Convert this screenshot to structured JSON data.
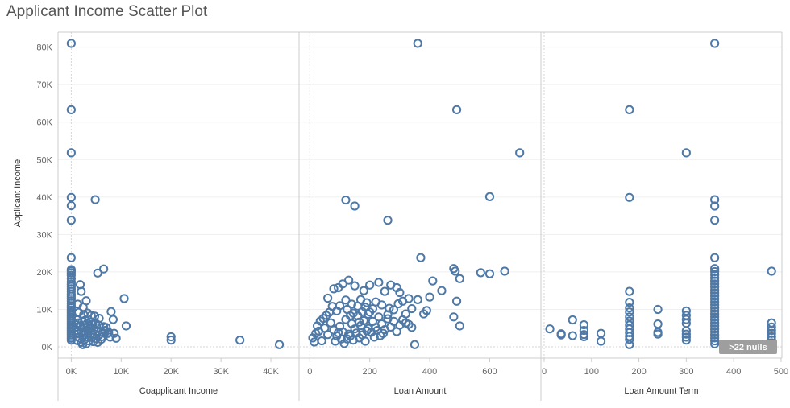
{
  "chart_data": {
    "type": "scatter",
    "title": "Applicant Income Scatter Plot",
    "ylabel": "Applicant Income",
    "ylim": [
      -3000,
      84000
    ],
    "yticks": [
      0,
      10000,
      20000,
      30000,
      40000,
      50000,
      60000,
      70000,
      80000
    ],
    "ytick_labels": [
      "0K",
      "10K",
      "20K",
      "30K",
      "40K",
      "50K",
      "60K",
      "70K",
      "80K"
    ],
    "marker_color": "#4e79a7",
    "grid": true,
    "nulls_badge": ">22 nulls",
    "panels": [
      {
        "xlabel": "Coapplicant Income",
        "xlim": [
          -2000,
          45000
        ],
        "xticks": [
          0,
          10000,
          20000,
          30000,
          40000
        ],
        "xtick_labels": [
          "0K",
          "10K",
          "20K",
          "30K",
          "40K"
        ],
        "points": [
          [
            0,
            81000
          ],
          [
            0,
            63300
          ],
          [
            0,
            51800
          ],
          [
            0,
            39900
          ],
          [
            0,
            37700
          ],
          [
            0,
            33800
          ],
          [
            0,
            23800
          ],
          [
            0,
            20600
          ],
          [
            0,
            20200
          ],
          [
            0,
            19700
          ],
          [
            0,
            19100
          ],
          [
            0,
            18200
          ],
          [
            0,
            17300
          ],
          [
            0,
            16700
          ],
          [
            0,
            16100
          ],
          [
            0,
            15500
          ],
          [
            0,
            14800
          ],
          [
            0,
            14100
          ],
          [
            0,
            13500
          ],
          [
            0,
            12900
          ],
          [
            0,
            12300
          ],
          [
            0,
            11600
          ],
          [
            0,
            11000
          ],
          [
            0,
            10400
          ],
          [
            0,
            9800
          ],
          [
            0,
            9300
          ],
          [
            0,
            8800
          ],
          [
            0,
            8300
          ],
          [
            0,
            7800
          ],
          [
            0,
            7300
          ],
          [
            0,
            6800
          ],
          [
            0,
            6300
          ],
          [
            0,
            5800
          ],
          [
            0,
            5300
          ],
          [
            0,
            4800
          ],
          [
            0,
            4300
          ],
          [
            0,
            3800
          ],
          [
            0,
            3300
          ],
          [
            0,
            2800
          ],
          [
            0,
            2300
          ],
          [
            0,
            1800
          ],
          [
            4800,
            39300
          ],
          [
            5300,
            19700
          ],
          [
            6500,
            20800
          ],
          [
            10600,
            12900
          ],
          [
            11000,
            5600
          ],
          [
            8000,
            9400
          ],
          [
            9000,
            2300
          ],
          [
            8400,
            7300
          ],
          [
            7500,
            3900
          ],
          [
            7000,
            5200
          ],
          [
            20000,
            2700
          ],
          [
            20000,
            1800
          ],
          [
            33800,
            1800
          ],
          [
            41700,
            600
          ],
          [
            1800,
            16600
          ],
          [
            2000,
            14800
          ],
          [
            3000,
            12300
          ],
          [
            2400,
            10600
          ],
          [
            1300,
            11400
          ],
          [
            1500,
            9200
          ],
          [
            2500,
            8600
          ],
          [
            3300,
            9000
          ],
          [
            4000,
            8400
          ],
          [
            4700,
            8200
          ],
          [
            5600,
            7600
          ],
          [
            1200,
            7200
          ],
          [
            2200,
            6700
          ],
          [
            3200,
            6300
          ],
          [
            4300,
            6000
          ],
          [
            5500,
            5800
          ],
          [
            6500,
            5400
          ],
          [
            1000,
            5900
          ],
          [
            1800,
            5300
          ],
          [
            2700,
            5100
          ],
          [
            3600,
            4900
          ],
          [
            4500,
            4500
          ],
          [
            5400,
            4200
          ],
          [
            6300,
            3800
          ],
          [
            7300,
            3600
          ],
          [
            1100,
            4400
          ],
          [
            2000,
            4100
          ],
          [
            2900,
            3800
          ],
          [
            3800,
            3600
          ],
          [
            4700,
            3400
          ],
          [
            5600,
            3200
          ],
          [
            1400,
            3500
          ],
          [
            2300,
            3000
          ],
          [
            3200,
            2700
          ],
          [
            4100,
            2500
          ],
          [
            5000,
            2200
          ],
          [
            6000,
            2000
          ],
          [
            1600,
            2400
          ],
          [
            2600,
            1900
          ],
          [
            3500,
            1600
          ],
          [
            4400,
            1400
          ],
          [
            5300,
            1200
          ],
          [
            2000,
            1200
          ],
          [
            3000,
            800
          ],
          [
            1200,
            1700
          ],
          [
            2300,
            600
          ],
          [
            1500,
            6400
          ],
          [
            2800,
            7100
          ],
          [
            3900,
            6700
          ],
          [
            4900,
            6300
          ],
          [
            6800,
            4400
          ],
          [
            7800,
            2600
          ],
          [
            8600,
            3600
          ],
          [
            6100,
            2700
          ],
          [
            3400,
            4300
          ],
          [
            1700,
            5600
          ]
        ]
      },
      {
        "xlabel": "Loan Amount",
        "xlim": [
          -25,
          760
        ],
        "xticks": [
          0,
          200,
          400,
          600
        ],
        "xtick_labels": [
          "0",
          "200",
          "400",
          "600"
        ],
        "points": [
          [
            360,
            81000
          ],
          [
            490,
            63300
          ],
          [
            700,
            51800
          ],
          [
            600,
            40100
          ],
          [
            120,
            39200
          ],
          [
            150,
            37600
          ],
          [
            260,
            33800
          ],
          [
            370,
            23800
          ],
          [
            480,
            20900
          ],
          [
            485,
            20200
          ],
          [
            570,
            19800
          ],
          [
            600,
            19500
          ],
          [
            650,
            20200
          ],
          [
            410,
            17600
          ],
          [
            500,
            18200
          ],
          [
            440,
            15000
          ],
          [
            400,
            13300
          ],
          [
            490,
            12200
          ],
          [
            380,
            8800
          ],
          [
            390,
            9700
          ],
          [
            480,
            8000
          ],
          [
            500,
            5600
          ],
          [
            350,
            600
          ],
          [
            60,
            13000
          ],
          [
            80,
            15500
          ],
          [
            95,
            15800
          ],
          [
            110,
            16800
          ],
          [
            130,
            17800
          ],
          [
            150,
            16300
          ],
          [
            180,
            15000
          ],
          [
            200,
            16500
          ],
          [
            230,
            17200
          ],
          [
            250,
            14800
          ],
          [
            270,
            16500
          ],
          [
            290,
            15800
          ],
          [
            300,
            14500
          ],
          [
            310,
            12200
          ],
          [
            330,
            12900
          ],
          [
            360,
            12600
          ],
          [
            340,
            10200
          ],
          [
            320,
            8800
          ],
          [
            280,
            9900
          ],
          [
            260,
            8600
          ],
          [
            240,
            11200
          ],
          [
            220,
            12000
          ],
          [
            210,
            10200
          ],
          [
            190,
            11800
          ],
          [
            170,
            12600
          ],
          [
            160,
            10900
          ],
          [
            140,
            11400
          ],
          [
            120,
            12500
          ],
          [
            100,
            11000
          ],
          [
            90,
            9600
          ],
          [
            75,
            10800
          ],
          [
            65,
            9200
          ],
          [
            55,
            8400
          ],
          [
            45,
            7600
          ],
          [
            35,
            6900
          ],
          [
            25,
            5600
          ],
          [
            20,
            3600
          ],
          [
            10,
            2400
          ],
          [
            15,
            1300
          ],
          [
            40,
            1600
          ],
          [
            30,
            4200
          ],
          [
            50,
            5000
          ],
          [
            60,
            3300
          ],
          [
            70,
            6400
          ],
          [
            80,
            4500
          ],
          [
            90,
            2900
          ],
          [
            100,
            5500
          ],
          [
            110,
            4000
          ],
          [
            120,
            7300
          ],
          [
            130,
            3400
          ],
          [
            140,
            6200
          ],
          [
            150,
            4800
          ],
          [
            160,
            8300
          ],
          [
            170,
            5700
          ],
          [
            180,
            7000
          ],
          [
            190,
            4300
          ],
          [
            200,
            9300
          ],
          [
            210,
            6800
          ],
          [
            220,
            5200
          ],
          [
            230,
            8000
          ],
          [
            240,
            6100
          ],
          [
            250,
            4600
          ],
          [
            260,
            7500
          ],
          [
            270,
            5300
          ],
          [
            280,
            6800
          ],
          [
            290,
            4100
          ],
          [
            300,
            5800
          ],
          [
            310,
            7200
          ],
          [
            320,
            6400
          ],
          [
            330,
            6000
          ],
          [
            340,
            5200
          ],
          [
            115,
            900
          ],
          [
            125,
            2100
          ],
          [
            135,
            2900
          ],
          [
            145,
            1800
          ],
          [
            155,
            3700
          ],
          [
            165,
            2400
          ],
          [
            175,
            3200
          ],
          [
            185,
            1500
          ],
          [
            195,
            4900
          ],
          [
            205,
            3900
          ],
          [
            215,
            2600
          ],
          [
            225,
            4400
          ],
          [
            235,
            3000
          ],
          [
            245,
            3600
          ],
          [
            85,
            1500
          ],
          [
            95,
            3800
          ],
          [
            105,
            2100
          ],
          [
            165,
            6600
          ],
          [
            175,
            9400
          ],
          [
            185,
            10600
          ],
          [
            195,
            8700
          ],
          [
            145,
            9000
          ],
          [
            135,
            8300
          ],
          [
            125,
            10000
          ],
          [
            265,
            10300
          ],
          [
            295,
            11500
          ]
        ]
      },
      {
        "xlabel": "Loan Amount Term",
        "xlim": [
          0,
          495
        ],
        "xticks": [
          0,
          100,
          200,
          300,
          400,
          500
        ],
        "xtick_labels": [
          "0",
          "100",
          "200",
          "300",
          "400",
          "500"
        ],
        "points": [
          [
            12,
            4800
          ],
          [
            36,
            3500
          ],
          [
            36,
            3200
          ],
          [
            60,
            7200
          ],
          [
            60,
            3000
          ],
          [
            84,
            5900
          ],
          [
            84,
            4400
          ],
          [
            84,
            3300
          ],
          [
            84,
            2700
          ],
          [
            120,
            3600
          ],
          [
            120,
            1500
          ],
          [
            180,
            63300
          ],
          [
            180,
            39900
          ],
          [
            180,
            14800
          ],
          [
            180,
            11900
          ],
          [
            180,
            10400
          ],
          [
            180,
            9300
          ],
          [
            180,
            8000
          ],
          [
            180,
            6900
          ],
          [
            180,
            5800
          ],
          [
            180,
            4800
          ],
          [
            180,
            3800
          ],
          [
            180,
            2800
          ],
          [
            180,
            2000
          ],
          [
            180,
            600
          ],
          [
            240,
            10000
          ],
          [
            240,
            6100
          ],
          [
            240,
            3900
          ],
          [
            240,
            3400
          ],
          [
            300,
            51800
          ],
          [
            300,
            9600
          ],
          [
            300,
            8400
          ],
          [
            300,
            7300
          ],
          [
            300,
            6300
          ],
          [
            300,
            4300
          ],
          [
            300,
            3400
          ],
          [
            300,
            2600
          ],
          [
            300,
            1800
          ],
          [
            360,
            81000
          ],
          [
            360,
            39300
          ],
          [
            360,
            37600
          ],
          [
            360,
            33800
          ],
          [
            360,
            23800
          ],
          [
            360,
            20900
          ],
          [
            360,
            20100
          ],
          [
            360,
            19300
          ],
          [
            360,
            18400
          ],
          [
            360,
            17600
          ],
          [
            360,
            16800
          ],
          [
            360,
            16000
          ],
          [
            360,
            15200
          ],
          [
            360,
            14400
          ],
          [
            360,
            13600
          ],
          [
            360,
            12800
          ],
          [
            360,
            12000
          ],
          [
            360,
            11200
          ],
          [
            360,
            10400
          ],
          [
            360,
            9600
          ],
          [
            360,
            8800
          ],
          [
            360,
            8000
          ],
          [
            360,
            7200
          ],
          [
            360,
            6400
          ],
          [
            360,
            5600
          ],
          [
            360,
            4800
          ],
          [
            360,
            4000
          ],
          [
            360,
            3200
          ],
          [
            360,
            2400
          ],
          [
            360,
            1600
          ],
          [
            360,
            800
          ],
          [
            480,
            20200
          ],
          [
            480,
            6400
          ],
          [
            480,
            5300
          ],
          [
            480,
            4400
          ],
          [
            480,
            3600
          ],
          [
            480,
            2700
          ],
          [
            480,
            1900
          ],
          [
            480,
            1100
          ]
        ]
      }
    ]
  }
}
